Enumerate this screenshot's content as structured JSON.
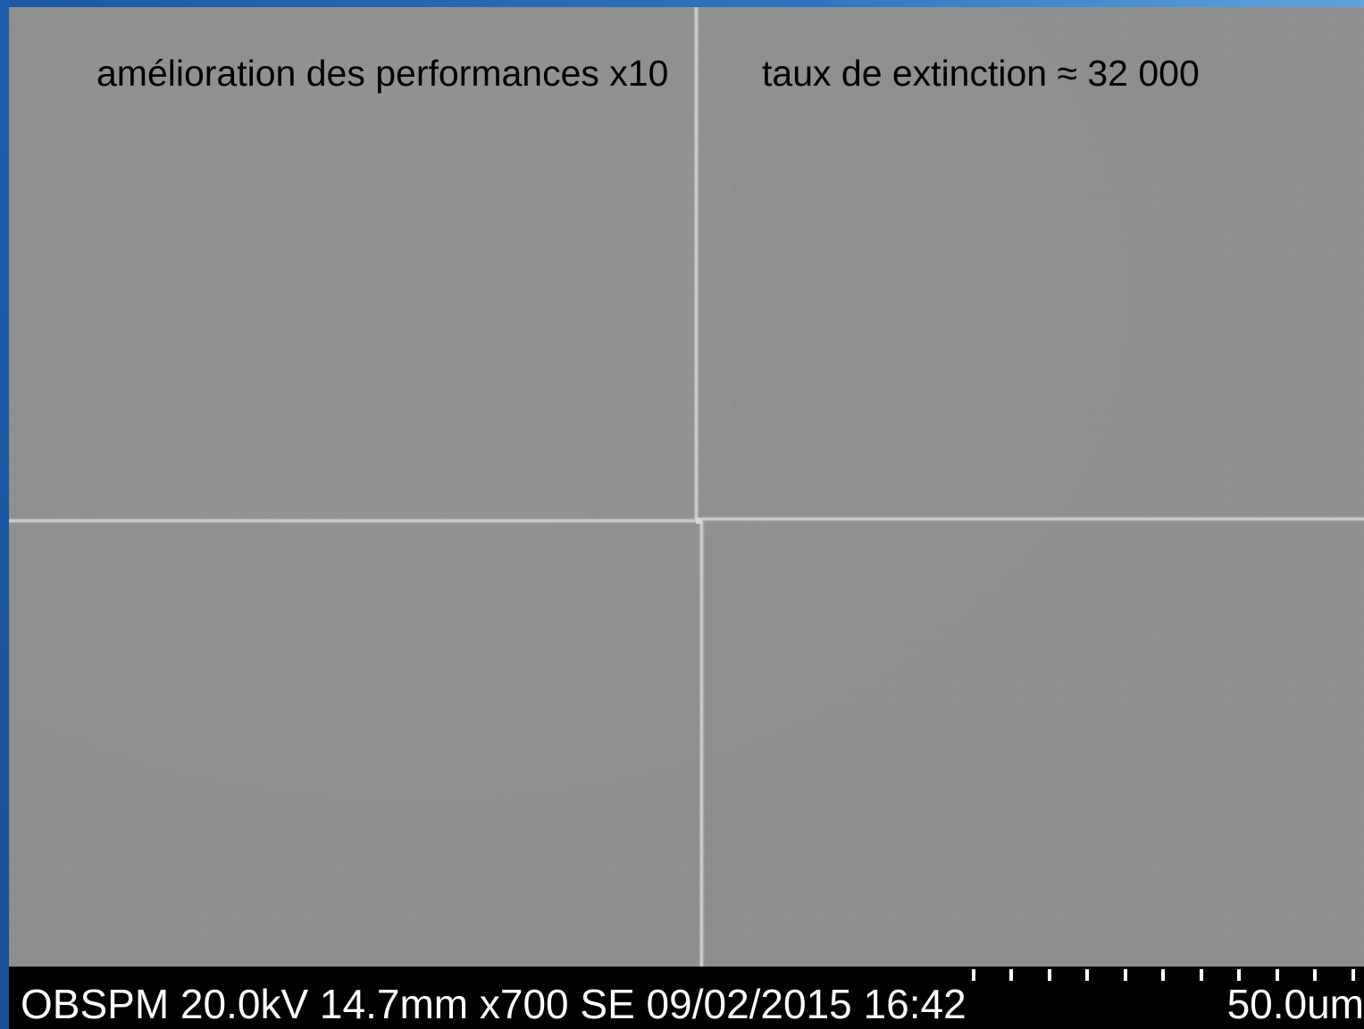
{
  "annotations": {
    "left": "amélioration des performances x10",
    "right": "taux de extinction ≈ 32 000"
  },
  "info_bar": {
    "text": "OBSPM 20.0kV 14.7mm x700 SE  09/02/2015 16:42",
    "scale_label": "50.0um"
  },
  "colors": {
    "frame": "#1a5aa8",
    "image_gray": "#8e8e8e",
    "info_bar": "#000000"
  }
}
